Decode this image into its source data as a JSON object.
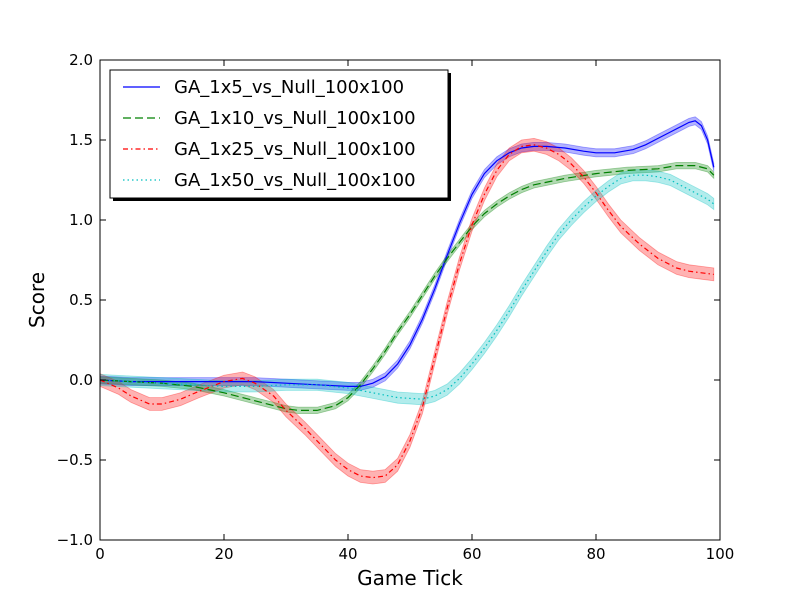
{
  "chart_data": {
    "type": "line",
    "xlabel": "Game Tick",
    "ylabel": "Score",
    "xlim": [
      0,
      100
    ],
    "ylim": [
      -1.0,
      2.0
    ],
    "xticks": [
      "0",
      "20",
      "40",
      "60",
      "80",
      "100"
    ],
    "yticks": [
      "−1.0",
      "−0.5",
      "0.0",
      "0.5",
      "1.0",
      "1.5",
      "2.0"
    ],
    "grid": false,
    "legend_position": "top-left",
    "series": [
      {
        "name": "GA_1x5_vs_Null_100x100",
        "color": "#0000ff",
        "linestyle": "solid",
        "x": [
          0,
          5,
          10,
          15,
          20,
          25,
          30,
          35,
          40,
          42,
          44,
          46,
          48,
          50,
          52,
          54,
          56,
          58,
          60,
          62,
          64,
          66,
          68,
          70,
          72,
          75,
          78,
          80,
          83,
          86,
          88,
          90,
          92,
          94,
          95,
          96,
          97,
          98,
          99
        ],
        "y": [
          0.0,
          -0.01,
          -0.01,
          -0.01,
          -0.01,
          -0.01,
          -0.02,
          -0.03,
          -0.04,
          -0.04,
          -0.02,
          0.02,
          0.1,
          0.22,
          0.38,
          0.57,
          0.78,
          0.98,
          1.16,
          1.29,
          1.37,
          1.42,
          1.45,
          1.46,
          1.46,
          1.45,
          1.43,
          1.42,
          1.42,
          1.44,
          1.47,
          1.51,
          1.55,
          1.59,
          1.61,
          1.62,
          1.59,
          1.5,
          1.33
        ],
        "band": 0.025
      },
      {
        "name": "GA_1x10_vs_Null_100x100",
        "color": "#008000",
        "linestyle": "dashed",
        "x": [
          0,
          5,
          10,
          15,
          20,
          25,
          28,
          30,
          32,
          35,
          38,
          40,
          42,
          44,
          46,
          48,
          50,
          52,
          54,
          56,
          58,
          60,
          62,
          64,
          66,
          68,
          70,
          75,
          80,
          85,
          90,
          93,
          96,
          98,
          99
        ],
        "y": [
          0.0,
          -0.01,
          -0.02,
          -0.04,
          -0.08,
          -0.13,
          -0.16,
          -0.18,
          -0.19,
          -0.19,
          -0.16,
          -0.11,
          -0.03,
          0.07,
          0.18,
          0.3,
          0.41,
          0.53,
          0.65,
          0.76,
          0.86,
          0.96,
          1.04,
          1.1,
          1.15,
          1.19,
          1.22,
          1.26,
          1.29,
          1.31,
          1.32,
          1.34,
          1.34,
          1.32,
          1.28
        ],
        "band": 0.02
      },
      {
        "name": "GA_1x25_vs_Null_100x100",
        "color": "#ff0000",
        "linestyle": "dashdot",
        "x": [
          0,
          3,
          5,
          8,
          10,
          13,
          16,
          20,
          23,
          25,
          28,
          30,
          33,
          36,
          38,
          40,
          42,
          44,
          46,
          48,
          50,
          52,
          54,
          56,
          58,
          60,
          62,
          64,
          66,
          68,
          70,
          72,
          74,
          76,
          78,
          80,
          82,
          84,
          87,
          90,
          93,
          95,
          97,
          99
        ],
        "y": [
          0.0,
          -0.05,
          -0.1,
          -0.15,
          -0.15,
          -0.12,
          -0.07,
          -0.01,
          0.01,
          -0.02,
          -0.1,
          -0.19,
          -0.3,
          -0.42,
          -0.5,
          -0.56,
          -0.6,
          -0.61,
          -0.6,
          -0.53,
          -0.38,
          -0.17,
          0.14,
          0.45,
          0.73,
          0.97,
          1.16,
          1.31,
          1.41,
          1.46,
          1.47,
          1.45,
          1.41,
          1.35,
          1.27,
          1.17,
          1.06,
          0.96,
          0.85,
          0.76,
          0.7,
          0.68,
          0.67,
          0.66
        ],
        "band": 0.04
      },
      {
        "name": "GA_1x50_vs_Null_100x100",
        "color": "#00bfbf",
        "linestyle": "dotted",
        "x": [
          0,
          5,
          10,
          15,
          20,
          25,
          30,
          35,
          40,
          44,
          48,
          52,
          54,
          56,
          58,
          60,
          62,
          64,
          66,
          68,
          70,
          72,
          74,
          76,
          78,
          80,
          82,
          84,
          86,
          88,
          90,
          92,
          94,
          96,
          98,
          99
        ],
        "y": [
          0.0,
          -0.01,
          -0.02,
          -0.03,
          -0.04,
          -0.04,
          -0.03,
          -0.03,
          -0.05,
          -0.08,
          -0.11,
          -0.12,
          -0.1,
          -0.06,
          0.01,
          0.1,
          0.2,
          0.31,
          0.43,
          0.56,
          0.68,
          0.8,
          0.91,
          1.0,
          1.08,
          1.15,
          1.21,
          1.26,
          1.28,
          1.28,
          1.27,
          1.25,
          1.21,
          1.17,
          1.13,
          1.1
        ],
        "band": 0.035
      }
    ]
  }
}
